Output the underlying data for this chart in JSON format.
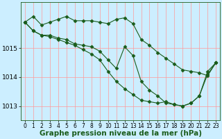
{
  "background_color": "#cceeff",
  "grid_color": "#ff9999",
  "line_color": "#1a5c1a",
  "marker_color": "#1a5c1a",
  "xlabel": "Graphe pression niveau de la mer (hPa)",
  "xlabel_fontsize": 7.5,
  "ylabel_fontsize": 6.5,
  "tick_fontsize": 5.5,
  "ylim": [
    1012.5,
    1016.6
  ],
  "xlim": [
    -0.5,
    23.5
  ],
  "yticks": [
    1013,
    1014,
    1015
  ],
  "xticks": [
    0,
    1,
    2,
    3,
    4,
    5,
    6,
    7,
    8,
    9,
    10,
    11,
    12,
    13,
    14,
    15,
    16,
    17,
    18,
    19,
    20,
    21,
    22,
    23
  ],
  "line1_x": [
    0,
    1,
    2,
    3,
    4,
    5,
    6,
    7,
    8,
    9,
    10,
    11,
    12,
    13,
    14,
    15,
    16,
    17,
    18,
    19,
    20,
    21,
    22,
    23
  ],
  "line1_y": [
    1015.9,
    1016.1,
    1015.8,
    1015.9,
    1016.0,
    1016.1,
    1015.95,
    1015.95,
    1015.95,
    1015.9,
    1015.85,
    1016.0,
    1016.05,
    1015.85,
    1015.3,
    1015.1,
    1014.85,
    1014.65,
    1014.45,
    1014.25,
    1014.2,
    1014.15,
    1014.05,
    1014.5
  ],
  "line2_x": [
    0,
    1,
    2,
    3,
    4,
    5,
    6,
    7,
    8,
    9,
    10,
    11,
    12,
    13,
    14,
    15,
    16,
    17,
    18,
    19,
    20,
    21,
    22,
    23
  ],
  "line2_y": [
    1015.9,
    1015.6,
    1015.45,
    1015.45,
    1015.35,
    1015.3,
    1015.15,
    1015.1,
    1015.05,
    1014.9,
    1014.6,
    1014.3,
    1015.05,
    1014.75,
    1013.85,
    1013.55,
    1013.35,
    1013.1,
    1013.05,
    1013.0,
    1013.1,
    1013.35,
    1014.2,
    1014.5
  ],
  "line3_x": [
    0,
    1,
    2,
    3,
    4,
    5,
    6,
    7,
    8,
    9,
    10,
    11,
    12,
    13,
    14,
    15,
    16,
    17,
    18,
    19,
    20,
    21,
    22,
    23
  ],
  "line3_y": [
    1015.9,
    1015.6,
    1015.45,
    1015.4,
    1015.3,
    1015.2,
    1015.1,
    1014.95,
    1014.8,
    1014.6,
    1014.2,
    1013.85,
    1013.6,
    1013.4,
    1013.2,
    1013.15,
    1013.1,
    1013.15,
    1013.05,
    1013.0,
    1013.1,
    1013.35,
    1014.1,
    1014.5
  ],
  "marker_size": 2.5,
  "line_width": 0.8
}
